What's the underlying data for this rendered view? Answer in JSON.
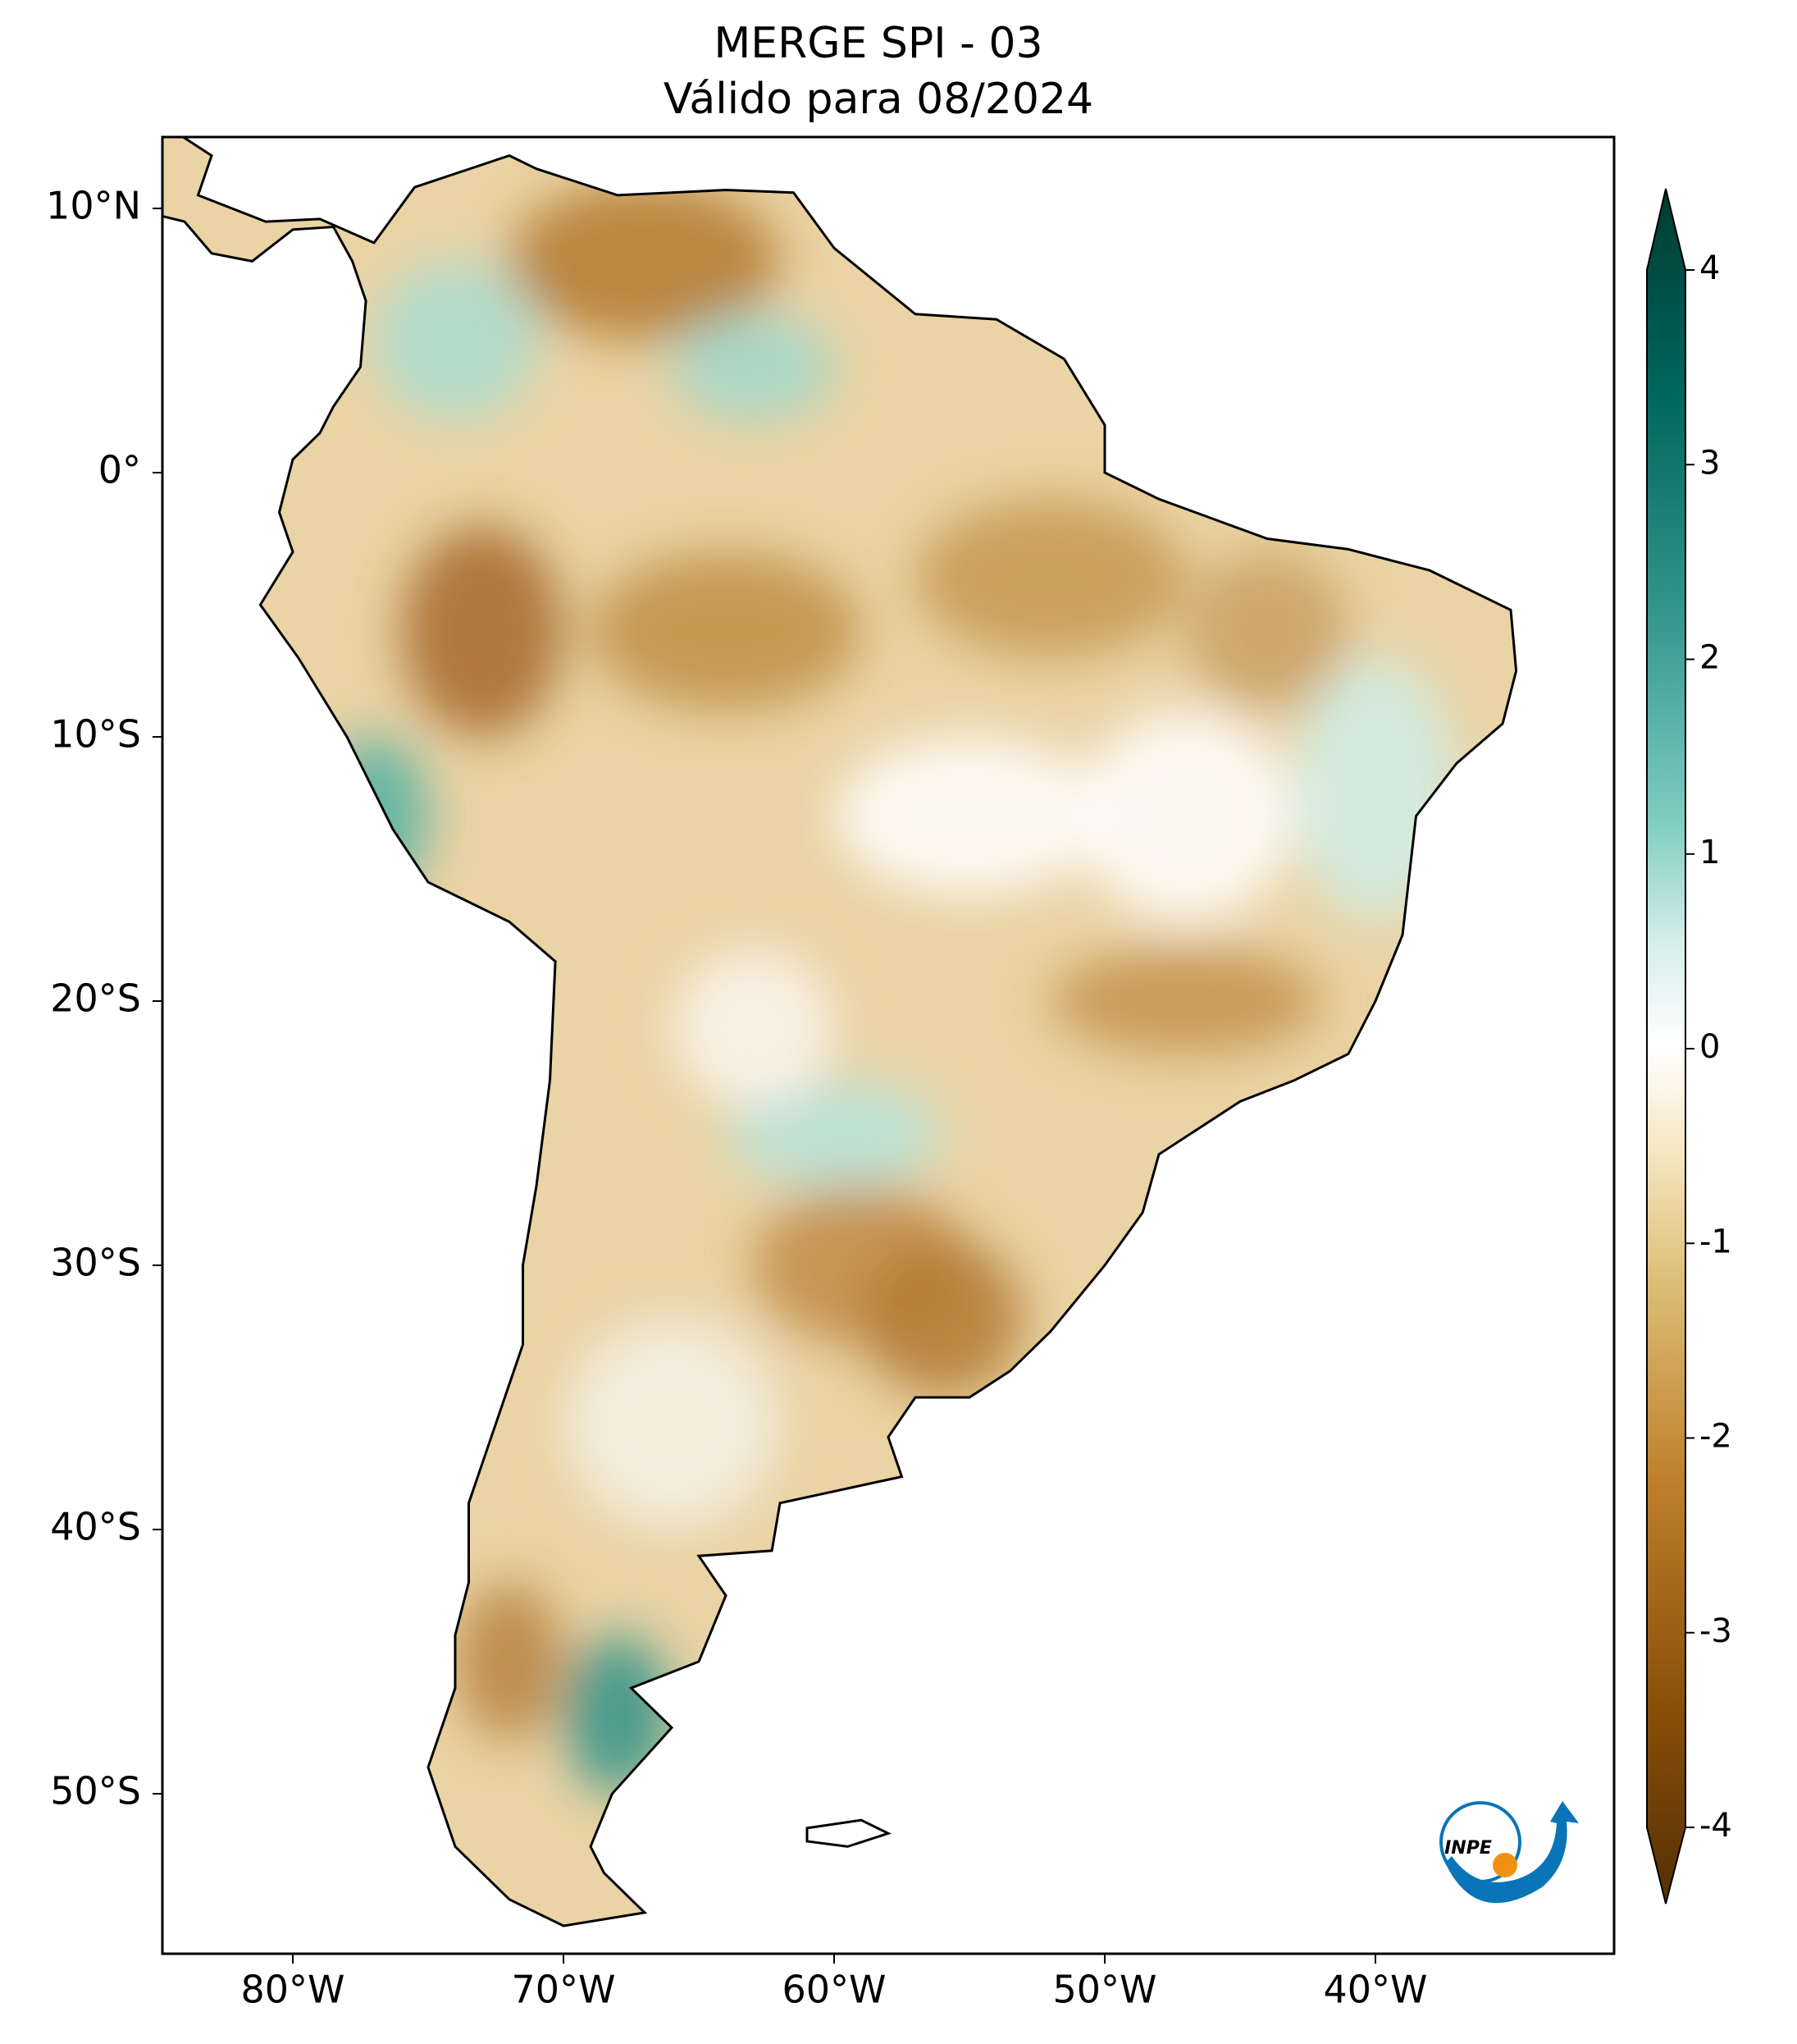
{
  "map": {
    "title": "MERGE   SPI - 03",
    "subtitle": "Válido para 08/2024",
    "lon_ticks": [
      {
        "value": -80,
        "label": "80°W"
      },
      {
        "value": -70,
        "label": "70°W"
      },
      {
        "value": -60,
        "label": "60°W"
      },
      {
        "value": -50,
        "label": "50°W"
      },
      {
        "value": -40,
        "label": "40°W"
      }
    ],
    "lat_ticks": [
      {
        "value": 10,
        "label": "10°N"
      },
      {
        "value": 0,
        "label": "0°"
      },
      {
        "value": -10,
        "label": "10°S"
      },
      {
        "value": -20,
        "label": "20°S"
      },
      {
        "value": -30,
        "label": "30°S"
      },
      {
        "value": -40,
        "label": "40°S"
      },
      {
        "value": -50,
        "label": "50°S"
      }
    ],
    "colorbar": {
      "range": [
        -4,
        4
      ],
      "ticks": [
        4,
        3,
        2,
        1,
        0,
        -1,
        -2,
        -3,
        -4
      ]
    },
    "logo_text": "INPE"
  }
}
